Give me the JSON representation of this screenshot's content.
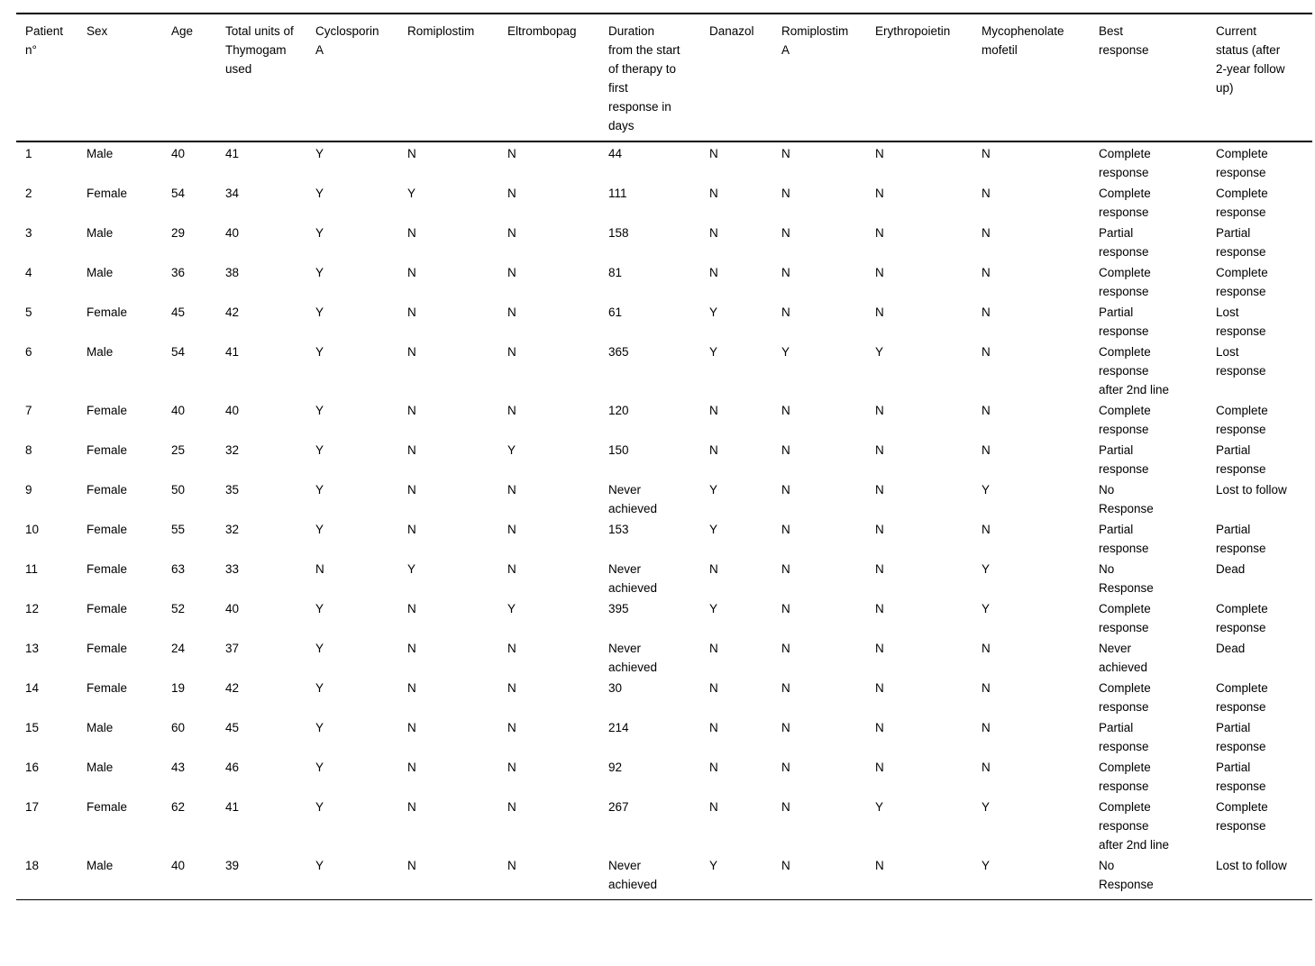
{
  "colors": {
    "text": "#000000",
    "background": "#ffffff",
    "rule": "#000000"
  },
  "table": {
    "title": "patient-treatment-outcomes-table",
    "columns": [
      "Patient n°",
      "Sex",
      "Age",
      "Total units of Thymogam used",
      "Cyclosporin A",
      "Romiplostim",
      "Eltrombopag",
      "Duration from the start of therapy to first response in days",
      "Danazol",
      "Romiplostim A",
      "Erythropoietin",
      "Mycophenolate mofetil",
      "Best response",
      "Current status (after 2-year follow up)"
    ],
    "rows": [
      [
        "1",
        "Male",
        "40",
        "41",
        "Y",
        "N",
        "N",
        "44",
        "N",
        "N",
        "N",
        "N",
        "Complete response",
        "Complete response"
      ],
      [
        "2",
        "Female",
        "54",
        "34",
        "Y",
        "Y",
        "N",
        "111",
        "N",
        "N",
        "N",
        "N",
        "Complete response",
        "Complete response"
      ],
      [
        "3",
        "Male",
        "29",
        "40",
        "Y",
        "N",
        "N",
        "158",
        "N",
        "N",
        "N",
        "N",
        "Partial response",
        "Partial response"
      ],
      [
        "4",
        "Male",
        "36",
        "38",
        "Y",
        "N",
        "N",
        "81",
        "N",
        "N",
        "N",
        "N",
        "Complete response",
        "Complete response"
      ],
      [
        "5",
        "Female",
        "45",
        "42",
        "Y",
        "N",
        "N",
        "61",
        "Y",
        "N",
        "N",
        "N",
        "Partial response",
        "Lost response"
      ],
      [
        "6",
        "Male",
        "54",
        "41",
        "Y",
        "N",
        "N",
        "365",
        "Y",
        "Y",
        "Y",
        "N",
        "Complete response after 2nd line",
        "Lost response"
      ],
      [
        "7",
        "Female",
        "40",
        "40",
        "Y",
        "N",
        "N",
        "120",
        "N",
        "N",
        "N",
        "N",
        "Complete response",
        "Complete response"
      ],
      [
        "8",
        "Female",
        "25",
        "32",
        "Y",
        "N",
        "Y",
        "150",
        "N",
        "N",
        "N",
        "N",
        "Partial response",
        "Partial response"
      ],
      [
        "9",
        "Female",
        "50",
        "35",
        "Y",
        "N",
        "N",
        "Never achieved",
        "Y",
        "N",
        "N",
        "Y",
        "No Response",
        "Lost to follow"
      ],
      [
        "10",
        "Female",
        "55",
        "32",
        "Y",
        "N",
        "N",
        "153",
        "Y",
        "N",
        "N",
        "N",
        "Partial response",
        "Partial response"
      ],
      [
        "11",
        "Female",
        "63",
        "33",
        "N",
        "Y",
        "N",
        "Never achieved",
        "N",
        "N",
        "N",
        "Y",
        "No Response",
        "Dead"
      ],
      [
        "12",
        "Female",
        "52",
        "40",
        "Y",
        "N",
        "Y",
        "395",
        "Y",
        "N",
        "N",
        "Y",
        "Complete response",
        "Complete response"
      ],
      [
        "13",
        "Female",
        "24",
        "37",
        "Y",
        "N",
        "N",
        "Never achieved",
        "N",
        "N",
        "N",
        "N",
        "Never achieved",
        "Dead"
      ],
      [
        "14",
        "Female",
        "19",
        "42",
        "Y",
        "N",
        "N",
        "30",
        "N",
        "N",
        "N",
        "N",
        "Complete response",
        "Complete response"
      ],
      [
        "15",
        "Male",
        "60",
        "45",
        "Y",
        "N",
        "N",
        "214",
        "N",
        "N",
        "N",
        "N",
        "Partial response",
        "Partial response"
      ],
      [
        "16",
        "Male",
        "43",
        "46",
        "Y",
        "N",
        "N",
        "92",
        "N",
        "N",
        "N",
        "N",
        "Complete response",
        "Partial response"
      ],
      [
        "17",
        "Female",
        "62",
        "41",
        "Y",
        "N",
        "N",
        "267",
        "N",
        "N",
        "Y",
        "Y",
        "Complete response after 2nd line",
        "Complete response"
      ],
      [
        "18",
        "Male",
        "40",
        "39",
        "Y",
        "N",
        "N",
        "Never achieved",
        "Y",
        "N",
        "N",
        "Y",
        "No Response",
        "Lost to follow"
      ]
    ]
  }
}
